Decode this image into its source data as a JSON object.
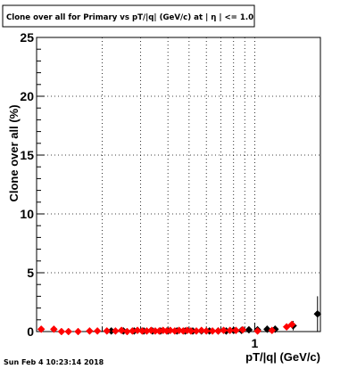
{
  "header": {
    "title": "Clone  over all for Primary vs pT/|q| (GeV/c) at |   η | <= 1.0"
  },
  "footer": {
    "timestamp": "Sun Feb  4 10:23:14 2018"
  },
  "chart_data": {
    "type": "scatter",
    "title": "Clone  over all for Primary vs pT/|q| (GeV/c) at |   η | <= 1.0",
    "xlabel": "pT/|q| (GeV/c)",
    "ylabel": "Clone  over all (%)",
    "x_scale": "log",
    "xlim": [
      0.1,
      2.0
    ],
    "ylim": [
      0,
      25
    ],
    "y_ticks": [
      0,
      5,
      10,
      15,
      20,
      25
    ],
    "y_tick_labels": [
      "0",
      "5",
      "10",
      "15",
      "20",
      "25"
    ],
    "x_tick_labels": [
      {
        "value": 1,
        "label": "1"
      }
    ],
    "grid": true,
    "colors": {
      "series_black": "#000000",
      "series_red": "#ff0000",
      "background": "#ffffff"
    },
    "series": [
      {
        "color": "#000000",
        "marker": "diamond",
        "points": [
          {
            "x": 0.22,
            "y": 0.05,
            "err": 0.1
          },
          {
            "x": 0.25,
            "y": 0.05,
            "err": 0.1
          },
          {
            "x": 0.28,
            "y": 0.05,
            "err": 0.1
          },
          {
            "x": 0.31,
            "y": 0.05,
            "err": 0.1
          },
          {
            "x": 0.34,
            "y": 0.05,
            "err": 0.1
          },
          {
            "x": 0.37,
            "y": 0.05,
            "err": 0.1
          },
          {
            "x": 0.4,
            "y": 0.05,
            "err": 0.1
          },
          {
            "x": 0.44,
            "y": 0.05,
            "err": 0.1
          },
          {
            "x": 0.48,
            "y": 0.05,
            "err": 0.1
          },
          {
            "x": 0.52,
            "y": 0.05,
            "err": 0.1
          },
          {
            "x": 0.57,
            "y": 0.05,
            "err": 0.1
          },
          {
            "x": 0.62,
            "y": 0.05,
            "err": 0.1
          },
          {
            "x": 0.68,
            "y": 0.05,
            "err": 0.1
          },
          {
            "x": 0.74,
            "y": 0.05,
            "err": 0.1
          },
          {
            "x": 0.8,
            "y": 0.1,
            "err": 0.1
          },
          {
            "x": 0.87,
            "y": 0.1,
            "err": 0.15
          },
          {
            "x": 0.94,
            "y": 0.15,
            "err": 0.15
          },
          {
            "x": 1.03,
            "y": 0.15,
            "err": 0.2
          },
          {
            "x": 1.14,
            "y": 0.2,
            "err": 0.3
          },
          {
            "x": 1.24,
            "y": 0.2,
            "err": 0.3
          },
          {
            "x": 1.5,
            "y": 0.5,
            "err": 0.4
          },
          {
            "x": 1.94,
            "y": 1.5,
            "err": 1.5
          }
        ]
      },
      {
        "color": "#ff0000",
        "marker": "diamond",
        "points": [
          {
            "x": 0.105,
            "y": 0.2,
            "err": 0.2
          },
          {
            "x": 0.12,
            "y": 0.2,
            "err": 0.2
          },
          {
            "x": 0.13,
            "y": 0.0,
            "err": 0.1
          },
          {
            "x": 0.14,
            "y": 0.0,
            "err": 0.1
          },
          {
            "x": 0.155,
            "y": 0.0,
            "err": 0.1
          },
          {
            "x": 0.175,
            "y": 0.05,
            "err": 0.1
          },
          {
            "x": 0.19,
            "y": 0.05,
            "err": 0.1
          },
          {
            "x": 0.21,
            "y": 0.05,
            "err": 0.1
          },
          {
            "x": 0.23,
            "y": 0.05,
            "err": 0.1
          },
          {
            "x": 0.245,
            "y": 0.1,
            "err": 0.1
          },
          {
            "x": 0.26,
            "y": 0.0,
            "err": 0.1
          },
          {
            "x": 0.275,
            "y": 0.05,
            "err": 0.1
          },
          {
            "x": 0.29,
            "y": 0.1,
            "err": 0.1
          },
          {
            "x": 0.305,
            "y": 0.05,
            "err": 0.1
          },
          {
            "x": 0.32,
            "y": 0.05,
            "err": 0.1
          },
          {
            "x": 0.335,
            "y": 0.1,
            "err": 0.1
          },
          {
            "x": 0.35,
            "y": 0.05,
            "err": 0.1
          },
          {
            "x": 0.365,
            "y": 0.05,
            "err": 0.1
          },
          {
            "x": 0.38,
            "y": 0.1,
            "err": 0.1
          },
          {
            "x": 0.395,
            "y": 0.05,
            "err": 0.1
          },
          {
            "x": 0.41,
            "y": 0.1,
            "err": 0.1
          },
          {
            "x": 0.43,
            "y": 0.05,
            "err": 0.1
          },
          {
            "x": 0.45,
            "y": 0.1,
            "err": 0.1
          },
          {
            "x": 0.47,
            "y": 0.05,
            "err": 0.1
          },
          {
            "x": 0.49,
            "y": 0.1,
            "err": 0.1
          },
          {
            "x": 0.51,
            "y": 0.05,
            "err": 0.1
          },
          {
            "x": 0.54,
            "y": 0.05,
            "err": 0.1
          },
          {
            "x": 0.57,
            "y": 0.1,
            "err": 0.1
          },
          {
            "x": 0.6,
            "y": 0.05,
            "err": 0.1
          },
          {
            "x": 0.64,
            "y": 0.05,
            "err": 0.1
          },
          {
            "x": 0.68,
            "y": 0.05,
            "err": 0.1
          },
          {
            "x": 0.72,
            "y": 0.1,
            "err": 0.1
          },
          {
            "x": 0.77,
            "y": 0.1,
            "err": 0.1
          },
          {
            "x": 0.82,
            "y": 0.1,
            "err": 0.1
          },
          {
            "x": 0.88,
            "y": 0.15,
            "err": 0.1
          },
          {
            "x": 1.03,
            "y": 0.05,
            "err": 0.1
          },
          {
            "x": 1.2,
            "y": 0.1,
            "err": 0.1
          },
          {
            "x": 1.4,
            "y": 0.4,
            "err": 0.2
          },
          {
            "x": 1.48,
            "y": 0.6,
            "err": 0.3
          }
        ]
      }
    ]
  }
}
